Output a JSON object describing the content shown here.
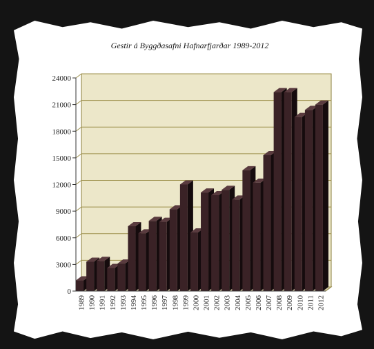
{
  "chart_data": {
    "type": "bar",
    "title": "Gestir á Byggðasafni Hafnarfjarðar 1989-2012",
    "xlabel": "",
    "ylabel": "",
    "ylim": [
      0,
      24000
    ],
    "yticks": [
      0,
      3000,
      6000,
      9000,
      12000,
      15000,
      18000,
      21000,
      24000
    ],
    "grid": true,
    "legend": "none",
    "categories": [
      "1989",
      "1990",
      "1991",
      "1992",
      "1993",
      "1994",
      "1995",
      "1996",
      "1997",
      "1998",
      "1999",
      "2000",
      "2001",
      "2002",
      "2003",
      "2004",
      "2005",
      "2006",
      "2007",
      "2008",
      "2009",
      "2010",
      "2011",
      "2012"
    ],
    "series": [
      {
        "values": [
          1200,
          3300,
          3400,
          2600,
          3100,
          7300,
          6500,
          7900,
          7800,
          9200,
          12000,
          6600,
          11100,
          10800,
          11400,
          10300,
          13600,
          12200,
          15300,
          22400,
          22400,
          19600,
          20400,
          21000
        ]
      }
    ],
    "colors": {
      "bar_front": "#3a2226",
      "bar_side": "#150b0d",
      "bar_top": "#5a3b3f",
      "plot_background": "#ece7c9",
      "gridline": "#9c8f4a",
      "wall_edge": "#8a7c3a",
      "paper": "#ffffff",
      "frame": "#141414"
    }
  }
}
